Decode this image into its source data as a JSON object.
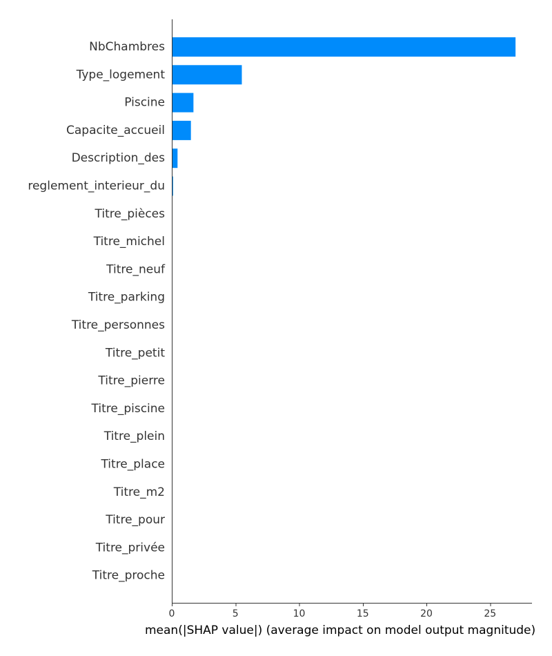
{
  "chart_data": {
    "type": "bar",
    "orientation": "horizontal",
    "title": "",
    "xlabel": "mean(|SHAP value|) (average impact on model output magnitude)",
    "ylabel": "",
    "categories": [
      "NbChambres",
      "Type_logement",
      "Piscine",
      "Capacite_accueil",
      "Description_des",
      "reglement_interieur_du",
      "Titre_pièces",
      "Titre_michel",
      "Titre_neuf",
      "Titre_parking",
      "Titre_personnes",
      "Titre_petit",
      "Titre_pierre",
      "Titre_piscine",
      "Titre_plein",
      "Titre_place",
      "Titre_m2",
      "Titre_pour",
      "Titre_privée",
      "Titre_proche"
    ],
    "values": [
      27.0,
      5.5,
      1.7,
      1.5,
      0.45,
      0.1,
      0,
      0,
      0,
      0,
      0,
      0,
      0,
      0,
      0,
      0,
      0,
      0,
      0,
      0
    ],
    "xlim": [
      0,
      28.3
    ],
    "xticks": [
      0,
      5,
      10,
      15,
      20,
      25
    ],
    "xtick_labels": [
      "0",
      "5",
      "10",
      "15",
      "20",
      "25"
    ],
    "bar_color": "#008bfb",
    "grid": false,
    "legend": "none"
  }
}
